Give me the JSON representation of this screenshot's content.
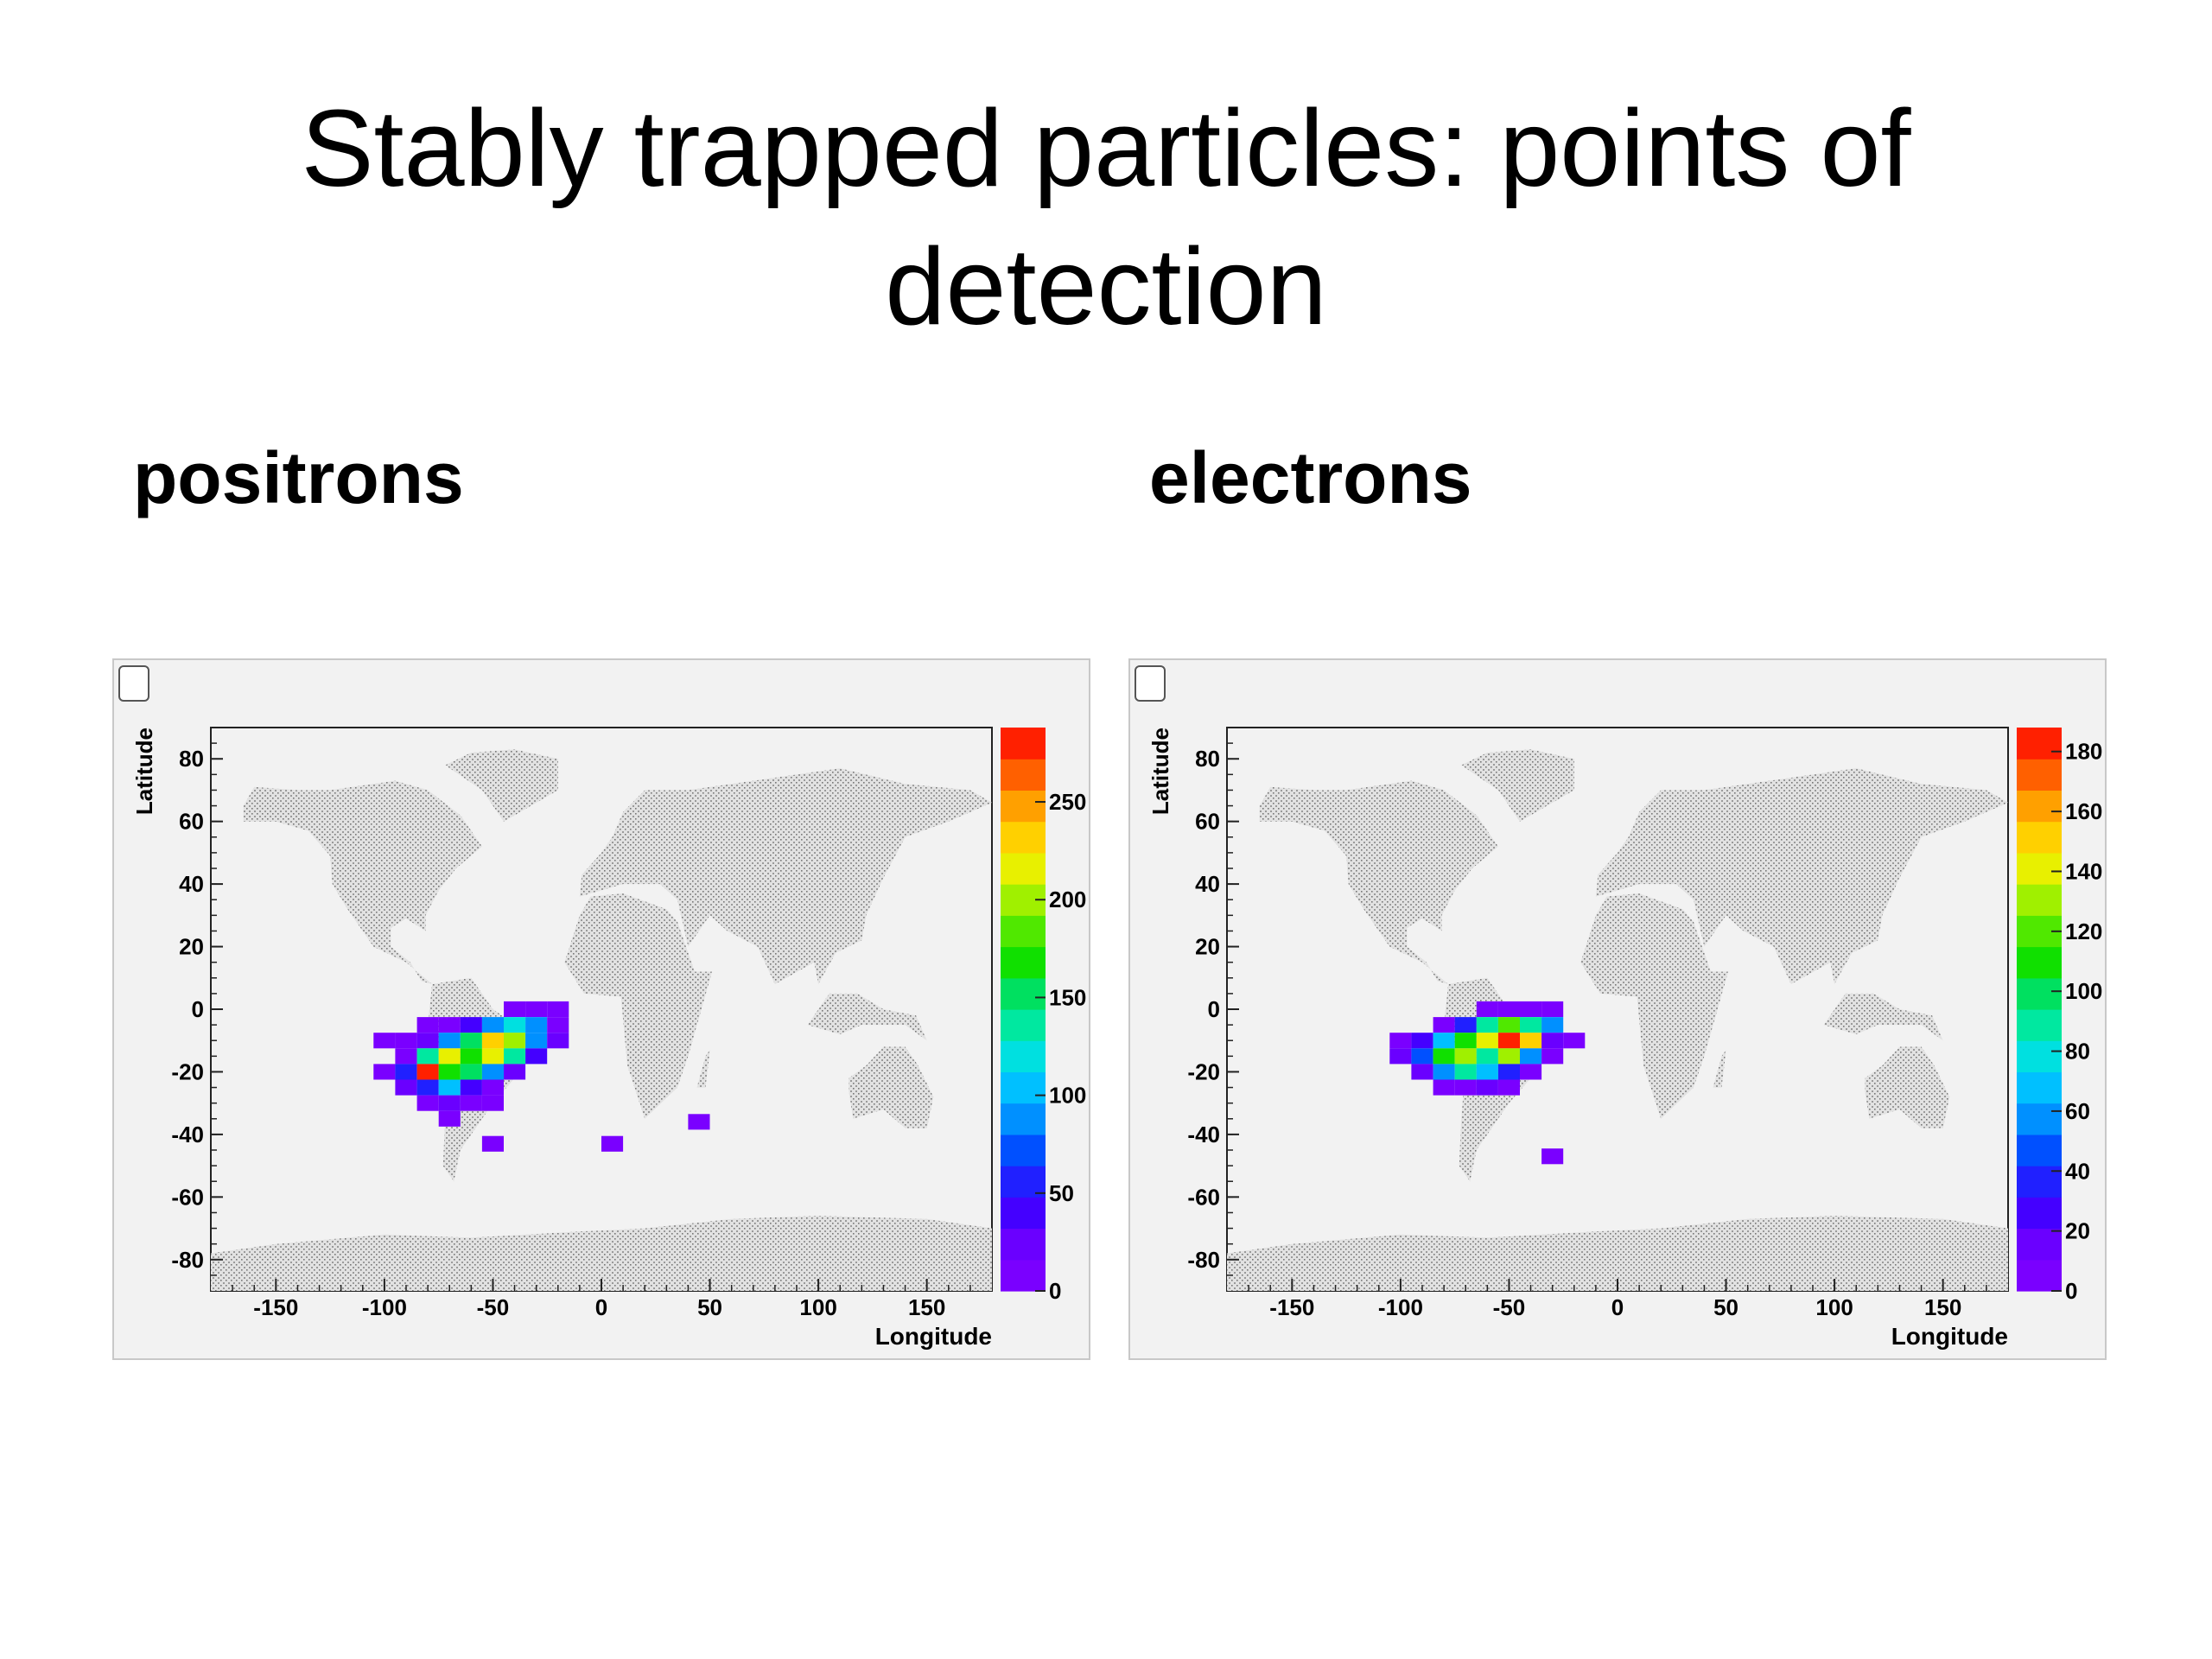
{
  "slide": {
    "title": "Stably trapped particles: points of\ndetection",
    "left_label": "positrons",
    "right_label": "electrons"
  },
  "colors": {
    "palette": [
      "#7a00ff",
      "#6a00ff",
      "#4400ff",
      "#2020ff",
      "#0050ff",
      "#0090ff",
      "#00c0ff",
      "#00e0e0",
      "#00e8a0",
      "#00e060",
      "#10e000",
      "#50e800",
      "#a0f000",
      "#e8f000",
      "#ffd000",
      "#ffa000",
      "#ff6000",
      "#ff2000"
    ],
    "frame_background": "#f2f2f2",
    "map_dots": "#9a9a9a"
  },
  "chart_data": [
    {
      "type": "heatmap",
      "title": "",
      "xlabel": "Longitude",
      "ylabel": "Latitude",
      "xlim": [
        -180,
        180
      ],
      "ylim": [
        -90,
        90
      ],
      "xticks": [
        "-150",
        "-100",
        "-50",
        "0",
        "50",
        "100",
        "150"
      ],
      "xtick_values": [
        -150,
        -100,
        -50,
        0,
        50,
        100,
        150
      ],
      "yticks": [
        "80",
        "60",
        "40",
        "20",
        "0",
        "-20",
        "-40",
        "-60",
        "-80"
      ],
      "ytick_values": [
        80,
        60,
        40,
        20,
        0,
        -20,
        -40,
        -60,
        -80
      ],
      "colorbar": {
        "range": [
          0,
          288
        ],
        "ticks": [
          "0",
          "50",
          "100",
          "150",
          "200",
          "250"
        ],
        "tick_values": [
          0,
          50,
          100,
          150,
          200,
          250
        ]
      },
      "cells": [
        [
          -40,
          0,
          10
        ],
        [
          -30,
          0,
          10
        ],
        [
          -20,
          0,
          10
        ],
        [
          -80,
          -5,
          10
        ],
        [
          -70,
          -5,
          10
        ],
        [
          -60,
          -5,
          40
        ],
        [
          -50,
          -5,
          80
        ],
        [
          -40,
          -5,
          120
        ],
        [
          -30,
          -5,
          90
        ],
        [
          -20,
          -5,
          15
        ],
        [
          -100,
          -10,
          10
        ],
        [
          -90,
          -10,
          10
        ],
        [
          -80,
          -10,
          30
        ],
        [
          -70,
          -10,
          90
        ],
        [
          -60,
          -10,
          150
        ],
        [
          -50,
          -10,
          230
        ],
        [
          -40,
          -10,
          200
        ],
        [
          -30,
          -10,
          90
        ],
        [
          -20,
          -10,
          20
        ],
        [
          -90,
          -15,
          15
        ],
        [
          -80,
          -15,
          130
        ],
        [
          -70,
          -15,
          215
        ],
        [
          -60,
          -15,
          175
        ],
        [
          -50,
          -15,
          215
        ],
        [
          -40,
          -15,
          140
        ],
        [
          -30,
          -15,
          40
        ],
        [
          -100,
          -20,
          10
        ],
        [
          -90,
          -20,
          60
        ],
        [
          -80,
          -20,
          280
        ],
        [
          -70,
          -20,
          160
        ],
        [
          -60,
          -20,
          150
        ],
        [
          -50,
          -20,
          80
        ],
        [
          -40,
          -20,
          20
        ],
        [
          -90,
          -25,
          20
        ],
        [
          -80,
          -25,
          60
        ],
        [
          -70,
          -25,
          100
        ],
        [
          -60,
          -25,
          45
        ],
        [
          -50,
          -25,
          10
        ],
        [
          -80,
          -30,
          10
        ],
        [
          -70,
          -30,
          20
        ],
        [
          -60,
          -30,
          15
        ],
        [
          -50,
          -30,
          10
        ],
        [
          -70,
          -35,
          10
        ],
        [
          -50,
          -43,
          10
        ],
        [
          5,
          -43,
          10
        ],
        [
          45,
          -36,
          10
        ]
      ]
    },
    {
      "type": "heatmap",
      "title": "",
      "xlabel": "Longitude",
      "ylabel": "Latitude",
      "xlim": [
        -180,
        180
      ],
      "ylim": [
        -90,
        90
      ],
      "xticks": [
        "-150",
        "-100",
        "-50",
        "0",
        "50",
        "100",
        "150"
      ],
      "xtick_values": [
        -150,
        -100,
        -50,
        0,
        50,
        100,
        150
      ],
      "yticks": [
        "80",
        "60",
        "40",
        "20",
        "0",
        "-20",
        "-40",
        "-60",
        "-80"
      ],
      "ytick_values": [
        80,
        60,
        40,
        20,
        0,
        -20,
        -40,
        -60,
        -80
      ],
      "colorbar": {
        "range": [
          0,
          188
        ],
        "ticks": [
          "0",
          "20",
          "40",
          "60",
          "80",
          "100",
          "120",
          "140",
          "160",
          "180"
        ],
        "tick_values": [
          0,
          20,
          40,
          60,
          80,
          100,
          120,
          140,
          160,
          180
        ]
      },
      "cells": [
        [
          -60,
          0,
          10
        ],
        [
          -50,
          0,
          10
        ],
        [
          -40,
          0,
          10
        ],
        [
          -30,
          0,
          10
        ],
        [
          -80,
          -5,
          10
        ],
        [
          -70,
          -5,
          40
        ],
        [
          -60,
          -5,
          90
        ],
        [
          -50,
          -5,
          120
        ],
        [
          -40,
          -5,
          90
        ],
        [
          -30,
          -5,
          60
        ],
        [
          -100,
          -10,
          10
        ],
        [
          -90,
          -10,
          30
        ],
        [
          -80,
          -10,
          70
        ],
        [
          -70,
          -10,
          110
        ],
        [
          -60,
          -10,
          140
        ],
        [
          -50,
          -10,
          180
        ],
        [
          -40,
          -10,
          150
        ],
        [
          -30,
          -10,
          20
        ],
        [
          -20,
          -10,
          10
        ],
        [
          -100,
          -15,
          15
        ],
        [
          -90,
          -15,
          50
        ],
        [
          -80,
          -15,
          110
        ],
        [
          -70,
          -15,
          130
        ],
        [
          -60,
          -15,
          90
        ],
        [
          -50,
          -15,
          130
        ],
        [
          -40,
          -15,
          60
        ],
        [
          -30,
          -15,
          10
        ],
        [
          -90,
          -20,
          20
        ],
        [
          -80,
          -20,
          60
        ],
        [
          -70,
          -20,
          90
        ],
        [
          -60,
          -20,
          70
        ],
        [
          -50,
          -20,
          40
        ],
        [
          -40,
          -20,
          10
        ],
        [
          -80,
          -25,
          10
        ],
        [
          -70,
          -25,
          10
        ],
        [
          -60,
          -25,
          15
        ],
        [
          -50,
          -25,
          10
        ],
        [
          -30,
          -47,
          10
        ]
      ]
    }
  ]
}
